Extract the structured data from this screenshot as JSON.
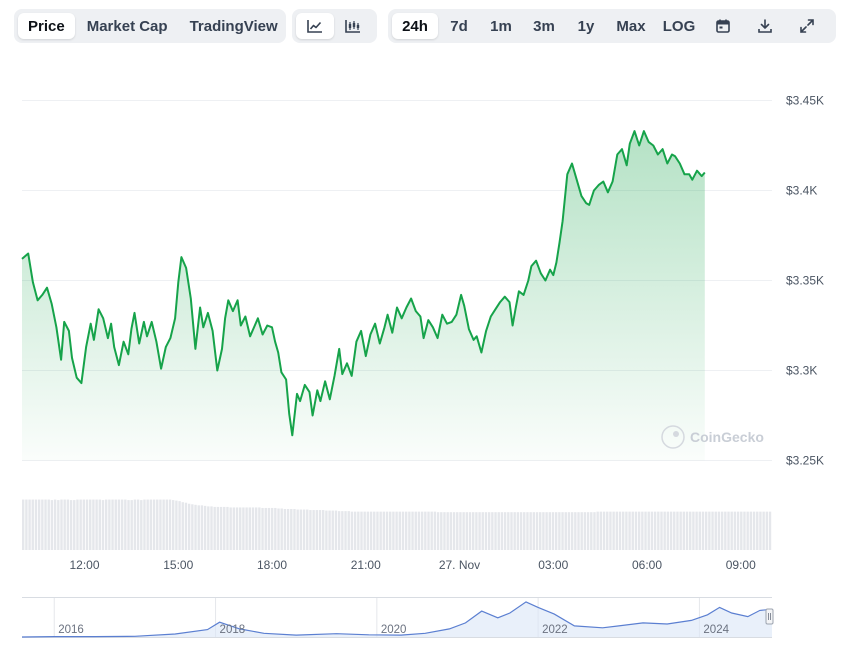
{
  "toolbar": {
    "views": [
      {
        "label": "Price",
        "active": true
      },
      {
        "label": "Market Cap",
        "active": false
      },
      {
        "label": "TradingView",
        "active": false
      }
    ],
    "chart_types": [
      {
        "icon": "line-chart-icon",
        "active": true
      },
      {
        "icon": "candlestick-chart-icon",
        "active": false
      }
    ],
    "ranges": [
      {
        "label": "24h",
        "active": true
      },
      {
        "label": "7d",
        "active": false
      },
      {
        "label": "1m",
        "active": false
      },
      {
        "label": "3m",
        "active": false
      },
      {
        "label": "1y",
        "active": false
      },
      {
        "label": "Max",
        "active": false
      },
      {
        "label": "LOG",
        "active": false
      }
    ],
    "tools": [
      {
        "icon": "calendar-icon"
      },
      {
        "icon": "download-icon"
      },
      {
        "icon": "expand-icon"
      }
    ]
  },
  "watermark": "CoinGecko",
  "colors": {
    "line": "#16a34a",
    "fill": "#16a34a",
    "volume": "#e5e7eb",
    "navigator_line": "#5b7fd1",
    "grid": "#eef0f3"
  },
  "chart_data": {
    "type": "area",
    "title": "",
    "xlabel": "",
    "ylabel": "",
    "y_ticks": [
      "$3.25K",
      "$3.3K",
      "$3.35K",
      "$3.4K",
      "$3.45K"
    ],
    "ylim": [
      3250,
      3450
    ],
    "x_ticks": [
      "12:00",
      "15:00",
      "18:00",
      "21:00",
      "27. Nov",
      "03:00",
      "06:00",
      "09:00"
    ],
    "x_tick_hours": [
      12,
      15,
      18,
      21,
      24,
      27,
      30,
      33
    ],
    "xlim": [
      10,
      34
    ],
    "grid": true,
    "series": [
      {
        "points": [
          [
            10.0,
            3362
          ],
          [
            10.2,
            3365
          ],
          [
            10.35,
            3349
          ],
          [
            10.5,
            3339
          ],
          [
            10.65,
            3342
          ],
          [
            10.8,
            3346
          ],
          [
            10.95,
            3337
          ],
          [
            11.1,
            3324
          ],
          [
            11.25,
            3306
          ],
          [
            11.35,
            3327
          ],
          [
            11.5,
            3322
          ],
          [
            11.6,
            3307
          ],
          [
            11.75,
            3296
          ],
          [
            11.9,
            3293
          ],
          [
            12.05,
            3313
          ],
          [
            12.2,
            3326
          ],
          [
            12.3,
            3317
          ],
          [
            12.45,
            3334
          ],
          [
            12.6,
            3329
          ],
          [
            12.75,
            3318
          ],
          [
            12.85,
            3326
          ],
          [
            12.95,
            3313
          ],
          [
            13.1,
            3303
          ],
          [
            13.25,
            3316
          ],
          [
            13.4,
            3309
          ],
          [
            13.5,
            3323
          ],
          [
            13.6,
            3332
          ],
          [
            13.75,
            3315
          ],
          [
            13.9,
            3327
          ],
          [
            14.0,
            3319
          ],
          [
            14.15,
            3327
          ],
          [
            14.3,
            3316
          ],
          [
            14.45,
            3301
          ],
          [
            14.6,
            3313
          ],
          [
            14.75,
            3318
          ],
          [
            14.9,
            3329
          ],
          [
            15.0,
            3349
          ],
          [
            15.1,
            3363
          ],
          [
            15.25,
            3357
          ],
          [
            15.4,
            3340
          ],
          [
            15.55,
            3312
          ],
          [
            15.7,
            3335
          ],
          [
            15.8,
            3324
          ],
          [
            15.95,
            3332
          ],
          [
            16.1,
            3322
          ],
          [
            16.25,
            3300
          ],
          [
            16.4,
            3312
          ],
          [
            16.5,
            3329
          ],
          [
            16.6,
            3339
          ],
          [
            16.75,
            3333
          ],
          [
            16.9,
            3339
          ],
          [
            17.0,
            3325
          ],
          [
            17.15,
            3330
          ],
          [
            17.3,
            3319
          ],
          [
            17.45,
            3325
          ],
          [
            17.55,
            3329
          ],
          [
            17.7,
            3320
          ],
          [
            17.85,
            3325
          ],
          [
            18.0,
            3324
          ],
          [
            18.1,
            3316
          ],
          [
            18.2,
            3310
          ],
          [
            18.3,
            3299
          ],
          [
            18.45,
            3295
          ],
          [
            18.55,
            3276
          ],
          [
            18.65,
            3264
          ],
          [
            18.8,
            3287
          ],
          [
            18.9,
            3283
          ],
          [
            19.05,
            3292
          ],
          [
            19.2,
            3288
          ],
          [
            19.3,
            3275
          ],
          [
            19.45,
            3289
          ],
          [
            19.55,
            3283
          ],
          [
            19.7,
            3294
          ],
          [
            19.85,
            3284
          ],
          [
            20.0,
            3297
          ],
          [
            20.15,
            3312
          ],
          [
            20.25,
            3298
          ],
          [
            20.4,
            3304
          ],
          [
            20.55,
            3297
          ],
          [
            20.7,
            3316
          ],
          [
            20.85,
            3322
          ],
          [
            21.0,
            3308
          ],
          [
            21.15,
            3320
          ],
          [
            21.3,
            3326
          ],
          [
            21.45,
            3315
          ],
          [
            21.6,
            3324
          ],
          [
            21.7,
            3331
          ],
          [
            21.85,
            3321
          ],
          [
            22.0,
            3335
          ],
          [
            22.15,
            3329
          ],
          [
            22.3,
            3335
          ],
          [
            22.45,
            3340
          ],
          [
            22.6,
            3333
          ],
          [
            22.75,
            3330
          ],
          [
            22.85,
            3318
          ],
          [
            23.0,
            3328
          ],
          [
            23.15,
            3324
          ],
          [
            23.3,
            3318
          ],
          [
            23.45,
            3331
          ],
          [
            23.6,
            3326
          ],
          [
            23.75,
            3327
          ],
          [
            23.9,
            3331
          ],
          [
            24.05,
            3342
          ],
          [
            24.15,
            3336
          ],
          [
            24.3,
            3323
          ],
          [
            24.45,
            3317
          ],
          [
            24.55,
            3319
          ],
          [
            24.7,
            3310
          ],
          [
            24.85,
            3322
          ],
          [
            25.0,
            3330
          ],
          [
            25.15,
            3334
          ],
          [
            25.3,
            3338
          ],
          [
            25.45,
            3341
          ],
          [
            25.6,
            3338
          ],
          [
            25.7,
            3325
          ],
          [
            25.8,
            3335
          ],
          [
            25.9,
            3344
          ],
          [
            26.05,
            3342
          ],
          [
            26.2,
            3350
          ],
          [
            26.3,
            3358
          ],
          [
            26.45,
            3361
          ],
          [
            26.6,
            3354
          ],
          [
            26.75,
            3350
          ],
          [
            26.9,
            3356
          ],
          [
            27.0,
            3353
          ],
          [
            27.1,
            3360
          ],
          [
            27.2,
            3371
          ],
          [
            27.3,
            3383
          ],
          [
            27.45,
            3409
          ],
          [
            27.6,
            3415
          ],
          [
            27.75,
            3406
          ],
          [
            27.9,
            3397
          ],
          [
            28.05,
            3393
          ],
          [
            28.15,
            3392
          ],
          [
            28.3,
            3400
          ],
          [
            28.45,
            3403
          ],
          [
            28.6,
            3405
          ],
          [
            28.75,
            3399
          ],
          [
            28.9,
            3405
          ],
          [
            29.05,
            3420
          ],
          [
            29.2,
            3423
          ],
          [
            29.35,
            3414
          ],
          [
            29.45,
            3426
          ],
          [
            29.6,
            3433
          ],
          [
            29.75,
            3425
          ],
          [
            29.9,
            3433
          ],
          [
            30.05,
            3427
          ],
          [
            30.2,
            3425
          ],
          [
            30.35,
            3420
          ],
          [
            30.5,
            3423
          ],
          [
            30.65,
            3415
          ],
          [
            30.8,
            3420
          ],
          [
            30.9,
            3419
          ],
          [
            31.05,
            3415
          ],
          [
            31.2,
            3409
          ],
          [
            31.35,
            3409
          ],
          [
            31.45,
            3406
          ],
          [
            31.6,
            3411
          ],
          [
            31.75,
            3408
          ],
          [
            31.85,
            3410
          ]
        ]
      }
    ]
  },
  "volume_data": {
    "type": "bar",
    "description": "",
    "values": [
      0.96,
      0.96,
      0.96,
      0.96,
      0.96,
      0.96,
      0.96,
      0.96,
      0.96,
      0.95,
      0.96,
      0.95,
      0.96,
      0.96,
      0.96,
      0.95,
      0.95,
      0.96,
      0.96,
      0.96,
      0.96,
      0.96,
      0.96,
      0.96,
      0.96,
      0.95,
      0.96,
      0.96,
      0.96,
      0.96,
      0.96,
      0.96,
      0.96,
      0.95,
      0.95,
      0.96,
      0.96,
      0.95,
      0.96,
      0.96,
      0.96,
      0.96,
      0.96,
      0.96,
      0.96,
      0.96,
      0.96,
      0.95,
      0.94,
      0.93,
      0.91,
      0.9,
      0.88,
      0.87,
      0.86,
      0.85,
      0.85,
      0.84,
      0.83,
      0.83,
      0.82,
      0.82,
      0.82,
      0.82,
      0.82,
      0.81,
      0.81,
      0.81,
      0.81,
      0.81,
      0.81,
      0.81,
      0.81,
      0.81,
      0.81,
      0.8,
      0.8,
      0.8,
      0.8,
      0.8,
      0.79,
      0.79,
      0.78,
      0.78,
      0.78,
      0.78,
      0.77,
      0.77,
      0.77,
      0.77,
      0.76,
      0.76,
      0.76,
      0.76,
      0.76,
      0.75,
      0.75,
      0.75,
      0.75,
      0.74,
      0.74,
      0.74,
      0.74,
      0.73,
      0.73,
      0.73,
      0.73,
      0.73,
      0.73,
      0.73,
      0.73,
      0.73,
      0.73,
      0.73,
      0.73,
      0.73,
      0.73,
      0.73,
      0.73,
      0.73,
      0.73,
      0.73,
      0.73,
      0.73,
      0.73,
      0.73,
      0.73,
      0.73,
      0.73,
      0.73,
      0.72,
      0.72,
      0.72,
      0.72,
      0.72,
      0.72,
      0.72,
      0.72,
      0.72,
      0.72,
      0.72,
      0.72,
      0.72,
      0.72,
      0.72,
      0.72,
      0.72,
      0.72,
      0.72,
      0.72,
      0.72,
      0.72,
      0.72,
      0.72,
      0.72,
      0.72,
      0.72,
      0.72,
      0.72,
      0.72,
      0.72,
      0.72,
      0.72,
      0.72,
      0.72,
      0.72,
      0.72,
      0.72,
      0.72,
      0.72,
      0.72,
      0.72,
      0.72,
      0.72,
      0.72,
      0.72,
      0.72,
      0.72,
      0.72,
      0.72,
      0.73,
      0.73,
      0.73,
      0.73,
      0.73,
      0.73,
      0.73,
      0.73,
      0.73,
      0.73,
      0.73,
      0.73,
      0.73,
      0.73,
      0.73,
      0.73,
      0.73,
      0.73,
      0.73,
      0.73,
      0.73,
      0.73,
      0.73,
      0.73,
      0.73,
      0.73,
      0.73,
      0.73,
      0.73,
      0.73,
      0.73,
      0.73,
      0.73,
      0.73,
      0.73,
      0.73,
      0.73,
      0.73,
      0.73,
      0.73,
      0.73,
      0.73,
      0.73,
      0.73,
      0.73,
      0.73,
      0.73,
      0.73,
      0.73,
      0.73,
      0.73,
      0.73,
      0.73,
      0.73,
      0.73
    ]
  },
  "navigator": {
    "labels": [
      "2016",
      "2018",
      "2020",
      "2022",
      "2024"
    ],
    "label_years": [
      2016,
      2018,
      2020,
      2022,
      2024
    ],
    "xlim": [
      2015.6,
      2024.9
    ],
    "series": [
      [
        2015.6,
        0
      ],
      [
        2016.0,
        1
      ],
      [
        2016.5,
        1
      ],
      [
        2017.0,
        2
      ],
      [
        2017.5,
        8
      ],
      [
        2017.9,
        20
      ],
      [
        2018.05,
        40
      ],
      [
        2018.3,
        22
      ],
      [
        2018.6,
        10
      ],
      [
        2019.0,
        5
      ],
      [
        2019.5,
        9
      ],
      [
        2019.9,
        6
      ],
      [
        2020.3,
        5
      ],
      [
        2020.6,
        10
      ],
      [
        2020.9,
        22
      ],
      [
        2021.1,
        38
      ],
      [
        2021.3,
        70
      ],
      [
        2021.5,
        52
      ],
      [
        2021.65,
        65
      ],
      [
        2021.85,
        95
      ],
      [
        2022.0,
        80
      ],
      [
        2022.2,
        62
      ],
      [
        2022.45,
        30
      ],
      [
        2022.8,
        25
      ],
      [
        2023.0,
        30
      ],
      [
        2023.3,
        38
      ],
      [
        2023.6,
        35
      ],
      [
        2023.9,
        45
      ],
      [
        2024.1,
        60
      ],
      [
        2024.25,
        80
      ],
      [
        2024.4,
        65
      ],
      [
        2024.6,
        55
      ],
      [
        2024.75,
        72
      ],
      [
        2024.9,
        75
      ]
    ]
  }
}
